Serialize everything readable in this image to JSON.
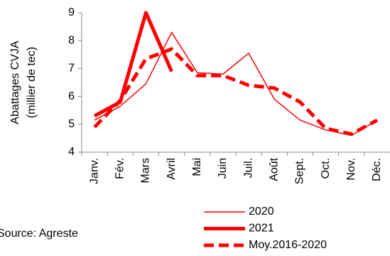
{
  "chart_data": {
    "type": "line",
    "y_label_lines": [
      "Abattages CVJA",
      "(millier de tec)"
    ],
    "source": "Source: Agreste",
    "categories": [
      "Janv.",
      "Fév.",
      "Mars",
      "Avril",
      "Mai",
      "Juin",
      "Juil.",
      "Août",
      "Sept.",
      "Oct.",
      "Nov.",
      "Déc."
    ],
    "series": [
      {
        "name": "2020",
        "color": "#ff0000",
        "width": 1.5,
        "dash": false,
        "values": [
          5.15,
          5.65,
          6.45,
          8.3,
          6.85,
          6.8,
          7.55,
          5.9,
          5.15,
          4.8,
          4.6,
          5.15
        ]
      },
      {
        "name": "2021",
        "color": "#ff0000",
        "width": 5,
        "dash": false,
        "values": [
          5.3,
          5.8,
          9.0,
          6.9,
          null,
          null,
          null,
          null,
          null,
          null,
          null,
          null
        ]
      },
      {
        "name": "Moy.2016-2020",
        "color": "#ff0000",
        "width": 5,
        "dash": true,
        "values": [
          4.9,
          5.85,
          7.35,
          7.7,
          6.75,
          6.75,
          6.4,
          6.3,
          5.8,
          4.85,
          4.65,
          5.15
        ]
      }
    ],
    "ylim": [
      4,
      9
    ],
    "yticks": [
      4,
      5,
      6,
      7,
      8,
      9
    ]
  }
}
